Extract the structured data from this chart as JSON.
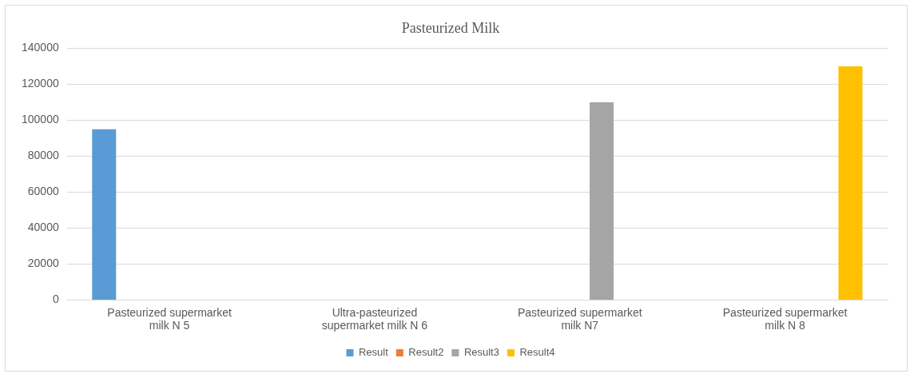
{
  "chart_data": {
    "type": "bar",
    "title": "Pasteurized Milk",
    "categories": [
      "Pasteurized supermarket milk N 5",
      "Ultra-pasteurized supermarket milk N 6",
      "Pasteurized supermarket milk N7",
      "Pasteurized supermarket milk N 8"
    ],
    "series": [
      {
        "name": "Result",
        "color": "#5b9bd5",
        "values": [
          95000,
          null,
          null,
          null
        ]
      },
      {
        "name": "Result2",
        "color": "#ed7d31",
        "values": [
          null,
          null,
          null,
          null
        ]
      },
      {
        "name": "Result3",
        "color": "#a5a5a5",
        "values": [
          null,
          null,
          110000,
          null
        ]
      },
      {
        "name": "Result4",
        "color": "#ffc000",
        "values": [
          null,
          null,
          null,
          130000
        ]
      }
    ],
    "ylim": [
      0,
      140000
    ],
    "yticks": [
      0,
      20000,
      40000,
      60000,
      80000,
      100000,
      120000,
      140000
    ],
    "grid": "y",
    "legend": "bottom"
  }
}
